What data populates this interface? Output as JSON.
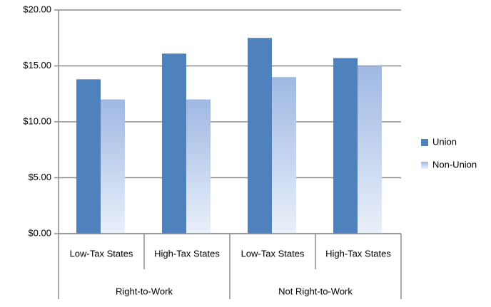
{
  "chart_data": {
    "type": "bar",
    "categories": [
      "Low-Tax States",
      "High-Tax States",
      "Low-Tax States",
      "High-Tax States"
    ],
    "groups": [
      "Right-to-Work",
      "Not Right-to-Work"
    ],
    "series": [
      {
        "name": "Union",
        "color": "#4f81bd",
        "values": [
          13.8,
          16.1,
          17.5,
          15.7
        ]
      },
      {
        "name": "Non-Union",
        "color": "#9fb8e3",
        "values": [
          12.0,
          12.0,
          14.0,
          15.0
        ]
      }
    ],
    "ylim": [
      0,
      20
    ],
    "yticks": [
      {
        "value": 0,
        "label": "$0.00"
      },
      {
        "value": 5,
        "label": "$5.00"
      },
      {
        "value": 10,
        "label": "$10.00"
      },
      {
        "value": 15,
        "label": "$15.00"
      },
      {
        "value": 20,
        "label": "$20.00"
      }
    ],
    "grid": true,
    "legend": "right"
  }
}
